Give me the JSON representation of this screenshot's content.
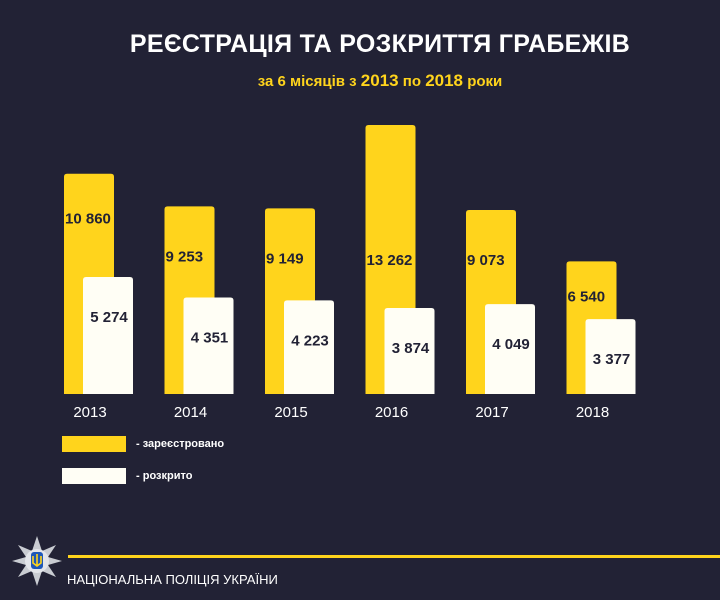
{
  "title": "РЕЄСТРАЦІЯ ТА РОЗКРИТТЯ ГРАБЕЖІВ",
  "subtitle": {
    "prefix": "за 6 місяців з",
    "from": "2013",
    "middle": "по",
    "to": "2018",
    "suffix": "роки"
  },
  "chart_data": {
    "type": "bar",
    "categories": [
      "2013",
      "2014",
      "2015",
      "2016",
      "2017",
      "2018"
    ],
    "series": [
      {
        "name": "- зареєстровано",
        "values": [
          10860,
          9253,
          9149,
          13262,
          9073,
          6540
        ],
        "labels": [
          "10 860",
          "9 253",
          "9 149",
          "13 262",
          "9 073",
          "6 540"
        ],
        "color": "#ffd41c"
      },
      {
        "name": "- розкрито",
        "values": [
          5274,
          4351,
          4223,
          3874,
          4049,
          3377
        ],
        "labels": [
          "5 274",
          "4 351",
          "4 223",
          "3 874",
          "4 049",
          "3 377"
        ],
        "color": "#fffef5"
      }
    ],
    "legend": "bottom-left",
    "grid": false
  },
  "footer": {
    "org": "НАЦІОНАЛЬНА ПОЛІЦІЯ УКРАЇНИ"
  },
  "colors": {
    "background": "#222235",
    "accent": "#ffd41c",
    "text": "#ffffff",
    "label_dark": "#222235"
  }
}
